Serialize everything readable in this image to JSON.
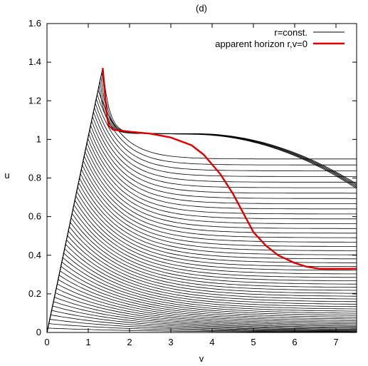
{
  "chart_data": {
    "type": "line",
    "title": "(d)",
    "xlabel": "v",
    "ylabel": "u",
    "xlim": [
      0,
      7.5
    ],
    "ylim": [
      0,
      1.6
    ],
    "x_ticks": [
      "0",
      "1",
      "2",
      "3",
      "4",
      "5",
      "6",
      "7"
    ],
    "y_ticks": [
      "0",
      "0.2",
      "0.4",
      "0.6",
      "0.8",
      "1",
      "1.2",
      "1.4",
      "1.6"
    ],
    "grid": false,
    "legend_position": "top-right",
    "series": [
      {
        "name": "r=const.",
        "color": "#000000",
        "description_family": "family of constant-r curves fanning from the origin, peaked near v=1.35",
        "peak": {
          "v": 1.35,
          "u": 1.37
        }
      },
      {
        "name": "apparent horizon r,v=0",
        "color": "#e00000",
        "points": [
          [
            1.35,
            1.37
          ],
          [
            1.4,
            1.25
          ],
          [
            1.45,
            1.12
          ],
          [
            1.5,
            1.07
          ],
          [
            1.6,
            1.05
          ],
          [
            2.0,
            1.04
          ],
          [
            2.5,
            1.03
          ],
          [
            3.0,
            1.01
          ],
          [
            3.5,
            0.97
          ],
          [
            3.8,
            0.92
          ],
          [
            4.2,
            0.82
          ],
          [
            4.5,
            0.72
          ],
          [
            4.8,
            0.6
          ],
          [
            5.0,
            0.52
          ],
          [
            5.3,
            0.45
          ],
          [
            5.6,
            0.4
          ],
          [
            6.0,
            0.36
          ],
          [
            6.3,
            0.34
          ],
          [
            6.6,
            0.33
          ],
          [
            7.0,
            0.33
          ],
          [
            7.5,
            0.33
          ]
        ]
      }
    ]
  }
}
